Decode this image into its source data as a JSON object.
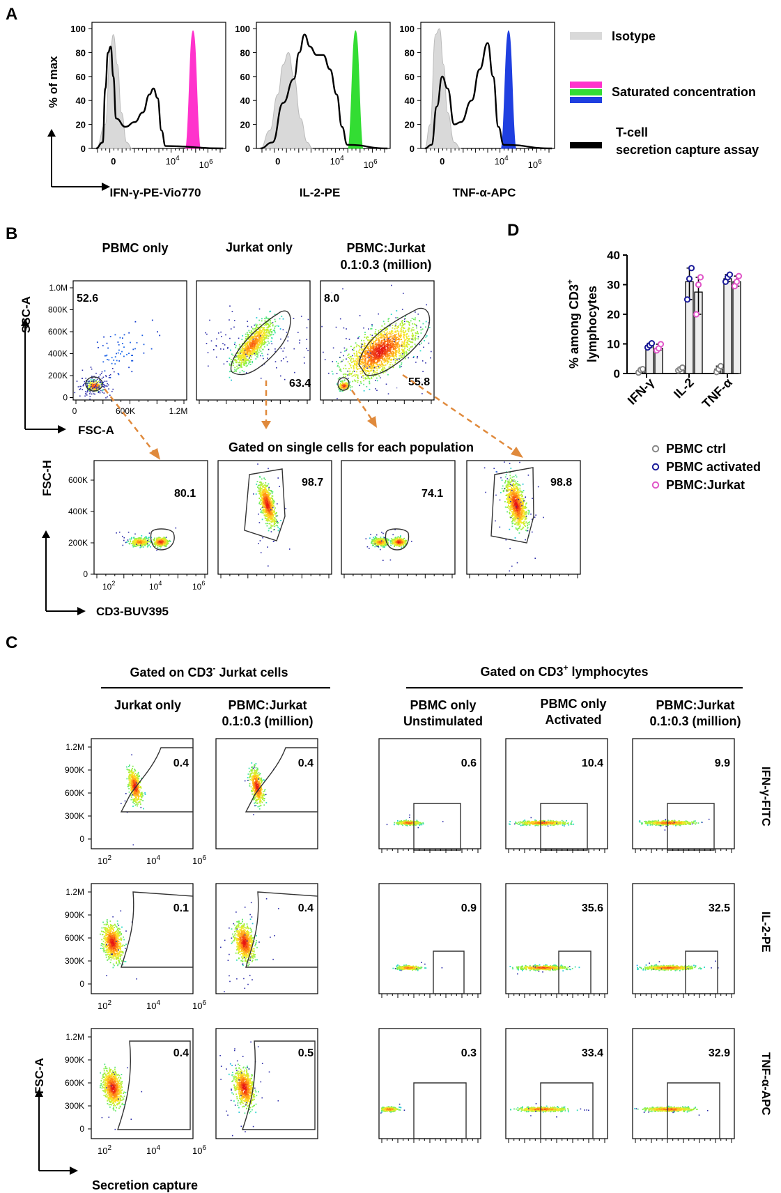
{
  "panel_labels": {
    "a": "A",
    "b": "B",
    "c": "C",
    "d": "D"
  },
  "colors": {
    "isotype": "#d9d9d9",
    "trace": "#000000",
    "magenta": "#ff33cc",
    "green": "#33dd33",
    "blue": "#1f3fe0",
    "ctrl": "#888888",
    "activated": "#1a1a99",
    "pbmc_jurkat": "#e055c8",
    "gate": "#555555",
    "arrow": "#e08a3c"
  },
  "panel_a": {
    "yaxis_title": "% of max",
    "legend": {
      "isotype": "Isotype",
      "saturated": "Saturated concentration",
      "capture_line1": "T-cell",
      "capture_line2": "secretion capture assay"
    },
    "charts": [
      {
        "xlabel": "IFN-γ-PE-Vio770",
        "fill": "magenta",
        "peak": 4.9
      },
      {
        "xlabel": "IL-2-PE",
        "fill": "green",
        "peak": 4.8
      },
      {
        "xlabel": "TNF-α-APC",
        "fill": "blue",
        "peak": 4.2
      }
    ],
    "y_ticks": [
      "0",
      "20",
      "40",
      "60",
      "80",
      "100"
    ],
    "x_ticks": [
      "0",
      "10",
      "10"
    ],
    "x_exps": [
      "4",
      "6"
    ]
  },
  "panel_b": {
    "titles": [
      "PBMC only",
      "Jurkat only",
      "PBMC:Jurkat",
      "0.1:0.3 (million)"
    ],
    "top_values": [
      "52.6",
      "63.4",
      "8.0",
      "55.8"
    ],
    "ssc_label": "SSC-A",
    "fsc_label": "FSC-A",
    "ssc_ticks": [
      "1.0M",
      "800K",
      "600K",
      "400K",
      "200K",
      "0"
    ],
    "fsc_ticks": [
      "0",
      "600K",
      "1.2M"
    ],
    "gated_title": "Gated on single cells for each population",
    "bottom_values": [
      "80.1",
      "98.7",
      "74.1",
      "98.8"
    ],
    "fsch_label": "FSC-H",
    "fsch_ticks": [
      "600K",
      "400K",
      "200K",
      "0"
    ],
    "cd3_label": "CD3-BUV395",
    "cd3_ticks": [
      "10",
      "10",
      "10"
    ],
    "cd3_exps": [
      "2",
      "4",
      "6"
    ]
  },
  "panel_c": {
    "left_header": "Gated on CD3",
    "left_header_sup": "-",
    "left_header_tail": " Jurkat cells",
    "right_header": "Gated on CD3",
    "right_header_sup": "+",
    "right_header_tail": " lymphocytes",
    "col_titles": [
      [
        "Jurkat only",
        ""
      ],
      [
        "PBMC:Jurkat",
        "0.1:0.3 (million)"
      ],
      [
        "PBMC only",
        "Unstimulated"
      ],
      [
        "PBMC only",
        "Activated"
      ],
      [
        "PBMC:Jurkat",
        "0.1:0.3 (million)"
      ]
    ],
    "row_labels": [
      "IFN-γ-FITC",
      "IL-2-PE",
      "TNF-α-APC"
    ],
    "values": [
      [
        "0.4",
        "0.4",
        "0.6",
        "10.4",
        "9.9"
      ],
      [
        "0.1",
        "0.4",
        "0.9",
        "35.6",
        "32.5"
      ],
      [
        "0.4",
        "0.5",
        "0.3",
        "33.4",
        "32.9"
      ]
    ],
    "y_ticks": [
      "1.2M",
      "900K",
      "600K",
      "300K",
      "0"
    ],
    "x_ticks": [
      "10",
      "10",
      "10"
    ],
    "x_exps": [
      "2",
      "4",
      "6"
    ],
    "y_axis_label": "FSC-A",
    "x_axis_label": "Secretion capture"
  },
  "chart_data": {
    "type": "bar",
    "title": "",
    "ylabel_line1": "% among CD3",
    "ylabel_sup": "+",
    "ylabel_line2": "lymphocytes",
    "ylim": [
      0,
      40
    ],
    "yticks": [
      "0",
      "10",
      "20",
      "30",
      "40"
    ],
    "categories": [
      "IFN-γ",
      "IL-2",
      "TNF-α"
    ],
    "series": [
      {
        "name": "PBMC ctrl",
        "values": [
          1,
          1.5,
          1.5
        ],
        "points": [
          [
            0.3,
            1.2,
            1.5
          ],
          [
            1.0,
            1.5,
            2.0
          ],
          [
            0.5,
            1.5,
            2.5
          ]
        ]
      },
      {
        "name": "PBMC activated",
        "values": [
          9.5,
          31,
          32
        ],
        "points": [
          [
            8.8,
            9.5,
            10.2
          ],
          [
            25,
            32,
            35.6
          ],
          [
            31,
            32.5,
            33.4
          ]
        ]
      },
      {
        "name": "PBMC:Jurkat",
        "values": [
          8.5,
          27.5,
          31
        ],
        "points": [
          [
            7.8,
            8.5,
            9.9
          ],
          [
            20,
            30,
            32.5
          ],
          [
            29.5,
            31,
            32.9
          ]
        ]
      }
    ]
  }
}
